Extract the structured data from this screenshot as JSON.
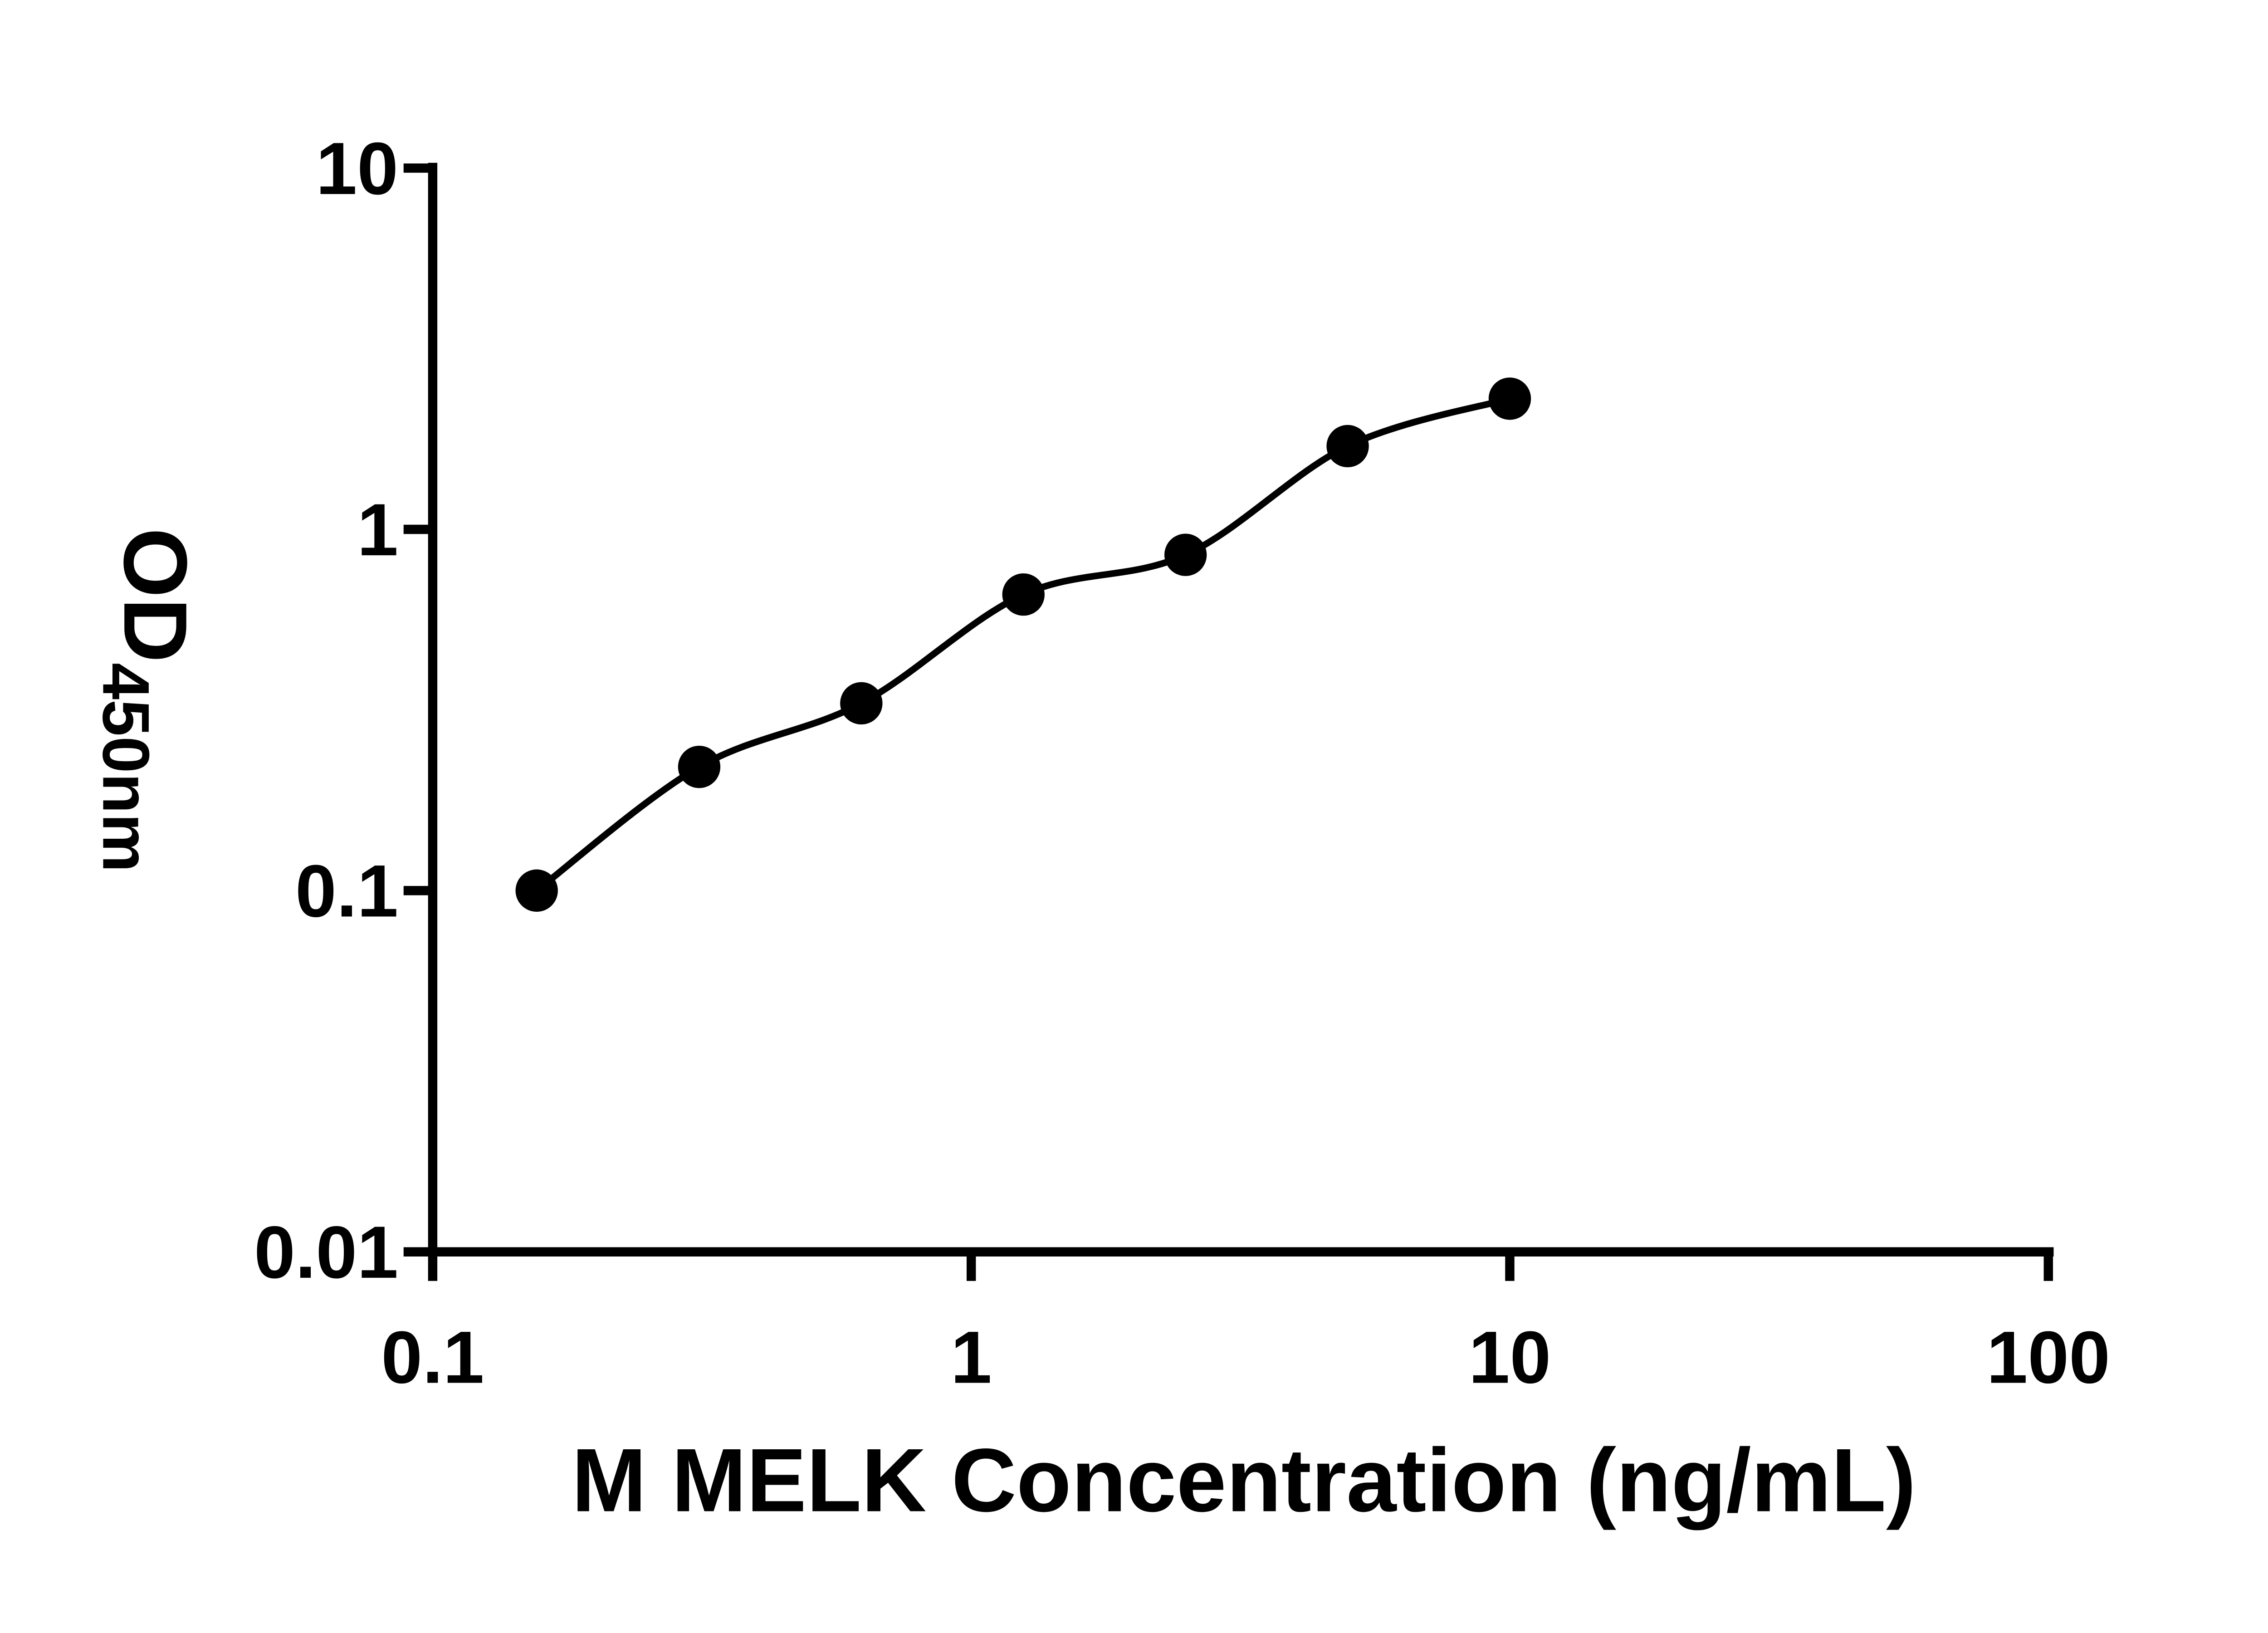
{
  "figure": {
    "background": "#ffffff",
    "line_color": "#000000",
    "marker_color": "#000000"
  },
  "chart_data": {
    "type": "scatter",
    "title": "",
    "xlabel": "M MELK Concentration (ng/mL)",
    "ylabel": "OD",
    "ylabel_subscript": "450nm",
    "x_scale": "log",
    "y_scale": "log",
    "xlim": [
      0.1,
      100
    ],
    "ylim": [
      0.01,
      10
    ],
    "x_ticks": [
      0.1,
      1,
      10,
      100
    ],
    "x_tick_labels": [
      "0.1",
      "1",
      "10",
      "100"
    ],
    "y_ticks": [
      0.01,
      0.1,
      1,
      10
    ],
    "y_tick_labels": [
      "0.01",
      "0.1",
      "1",
      "10"
    ],
    "grid": false,
    "legend": "none",
    "marker": "filled-circle",
    "curve": "smooth-fit",
    "points": [
      {
        "x": 0.156,
        "y": 0.1
      },
      {
        "x": 0.3125,
        "y": 0.22
      },
      {
        "x": 0.625,
        "y": 0.33
      },
      {
        "x": 1.25,
        "y": 0.66
      },
      {
        "x": 2.5,
        "y": 0.85
      },
      {
        "x": 5.0,
        "y": 1.7
      },
      {
        "x": 10.0,
        "y": 2.3
      }
    ]
  }
}
